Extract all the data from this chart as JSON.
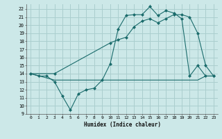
{
  "xlabel": "Humidex (Indice chaleur)",
  "bg_color": "#cce8e8",
  "grid_color": "#aacece",
  "line_color": "#1a6b6b",
  "xlim": [
    -0.5,
    23.5
  ],
  "ylim": [
    9,
    22.6
  ],
  "yticks": [
    9,
    10,
    11,
    12,
    13,
    14,
    15,
    16,
    17,
    18,
    19,
    20,
    21,
    22
  ],
  "xticks": [
    0,
    1,
    2,
    3,
    4,
    5,
    6,
    7,
    8,
    9,
    10,
    11,
    12,
    13,
    14,
    15,
    16,
    17,
    18,
    19,
    20,
    21,
    22,
    23
  ],
  "line1_x": [
    0,
    1,
    2,
    3,
    4,
    5,
    6,
    7,
    8,
    9,
    10,
    11,
    12,
    13,
    14,
    15,
    16,
    17,
    18,
    19,
    20,
    21,
    22,
    23
  ],
  "line1_y": [
    14.0,
    13.7,
    13.7,
    13.0,
    11.2,
    9.5,
    11.5,
    12.0,
    12.2,
    13.2,
    15.2,
    19.5,
    21.2,
    21.3,
    21.3,
    22.3,
    21.2,
    21.8,
    21.5,
    20.8,
    13.7,
    15.0,
    13.7,
    13.7
  ],
  "line2_x": [
    0,
    3,
    4,
    5,
    6,
    7,
    8,
    9,
    10,
    11,
    12,
    13,
    14,
    15,
    16,
    17,
    18,
    19,
    20,
    21,
    22,
    23
  ],
  "line2_y": [
    14.0,
    13.2,
    13.2,
    13.2,
    13.2,
    13.2,
    13.2,
    13.2,
    13.2,
    13.2,
    13.2,
    13.2,
    13.2,
    13.2,
    13.2,
    13.2,
    13.2,
    13.2,
    13.2,
    13.2,
    13.7,
    13.7
  ],
  "line3_x": [
    0,
    3,
    10,
    11,
    12,
    13,
    14,
    15,
    16,
    17,
    18,
    19,
    20,
    21,
    22,
    23
  ],
  "line3_y": [
    14.0,
    14.0,
    17.8,
    18.2,
    18.5,
    19.8,
    20.5,
    20.8,
    20.3,
    20.8,
    21.3,
    21.3,
    21.0,
    19.0,
    15.0,
    13.7
  ]
}
